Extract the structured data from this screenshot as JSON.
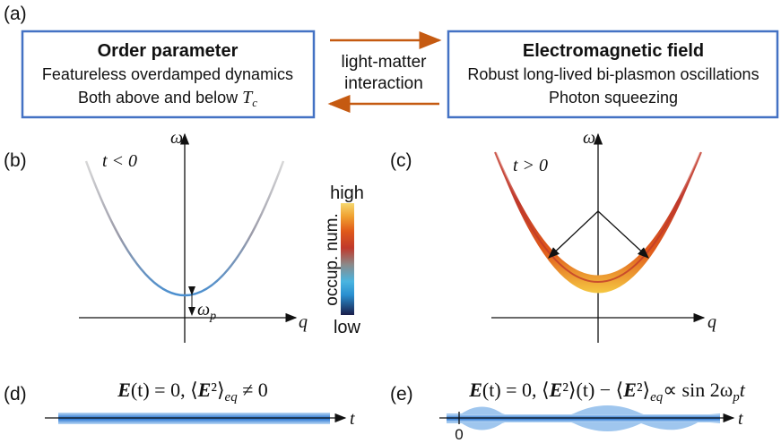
{
  "panel_labels": {
    "a": "(a)",
    "b": "(b)",
    "c": "(c)",
    "d": "(d)",
    "e": "(e)"
  },
  "left_box": {
    "title": "Order parameter",
    "line1": "Featureless overdamped dynamics",
    "line2_prefix": "Both above and below ",
    "line2_symbol": "T",
    "line2_subscript": "c",
    "border_color": "#4472c4"
  },
  "right_box": {
    "title": "Electromagnetic field",
    "line1": "Robust long-lived bi-plasmon oscillations",
    "line2": "Photon squeezing",
    "border_color": "#4472c4"
  },
  "interaction": {
    "line1": "light-matter",
    "line2": "interaction",
    "arrow_color": "#c55a11"
  },
  "panel_b": {
    "y_axis": "ω",
    "x_axis": "q",
    "condition": "t < 0",
    "gap_label": "ω",
    "gap_subscript": "p"
  },
  "panel_c": {
    "y_axis": "ω",
    "x_axis": "q",
    "condition": "t > 0"
  },
  "colorbar": {
    "label": "occup. num.",
    "high": "high",
    "low": "low",
    "stops": [
      "#1a1e4a",
      "#2a8fd0",
      "#4ab5e0",
      "#8a8a8a",
      "#c0392b",
      "#e05a1a",
      "#f0a030",
      "#f5d76e"
    ]
  },
  "panel_d": {
    "eq_part1": "E",
    "eq_part2": "(t) = 0, ⟨",
    "eq_part3": "E",
    "eq_part4": "²⟩",
    "eq_sub": "eq",
    "eq_part5": " ≠ 0",
    "t_axis": "t"
  },
  "panel_e": {
    "eq_part1": "E",
    "eq_part2": "(t) = 0, ⟨",
    "eq_part3": "E",
    "eq_part4": "²⟩(t) − ⟨",
    "eq_part5": "E",
    "eq_part6": "²⟩",
    "eq_sub": "eq",
    "eq_part7": "∝ sin 2ω",
    "eq_sub2": "p",
    "eq_part8": "t",
    "t_axis": "t",
    "origin": "0"
  }
}
